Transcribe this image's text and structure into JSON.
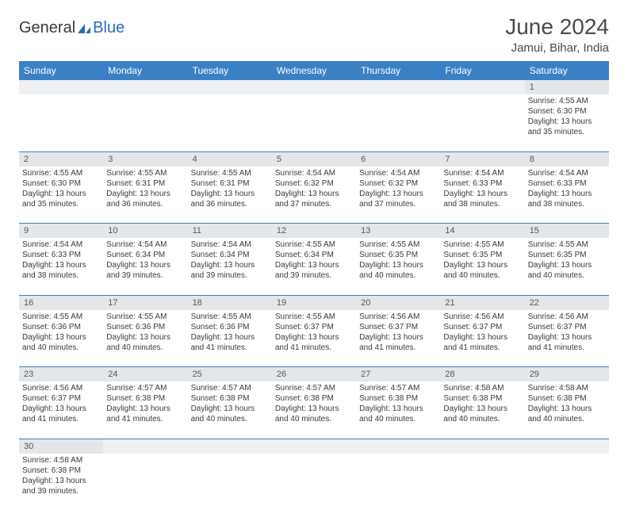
{
  "logo": {
    "text1": "General",
    "text2": "Blue"
  },
  "header": {
    "month_title": "June 2024",
    "location": "Jamui, Bihar, India"
  },
  "colors": {
    "header_bg": "#3a80c5",
    "header_text": "#ffffff",
    "daynum_bg": "#e4e7ea",
    "row_border": "#3a80c5",
    "text": "#3a3a3a",
    "logo_blue": "#2a6db5"
  },
  "weekdays": [
    "Sunday",
    "Monday",
    "Tuesday",
    "Wednesday",
    "Thursday",
    "Friday",
    "Saturday"
  ],
  "weeks": [
    {
      "nums": [
        "",
        "",
        "",
        "",
        "",
        "",
        "1"
      ],
      "cells": [
        null,
        null,
        null,
        null,
        null,
        null,
        {
          "sunrise": "Sunrise: 4:55 AM",
          "sunset": "Sunset: 6:30 PM",
          "d1": "Daylight: 13 hours",
          "d2": "and 35 minutes."
        }
      ]
    },
    {
      "nums": [
        "2",
        "3",
        "4",
        "5",
        "6",
        "7",
        "8"
      ],
      "cells": [
        {
          "sunrise": "Sunrise: 4:55 AM",
          "sunset": "Sunset: 6:30 PM",
          "d1": "Daylight: 13 hours",
          "d2": "and 35 minutes."
        },
        {
          "sunrise": "Sunrise: 4:55 AM",
          "sunset": "Sunset: 6:31 PM",
          "d1": "Daylight: 13 hours",
          "d2": "and 36 minutes."
        },
        {
          "sunrise": "Sunrise: 4:55 AM",
          "sunset": "Sunset: 6:31 PM",
          "d1": "Daylight: 13 hours",
          "d2": "and 36 minutes."
        },
        {
          "sunrise": "Sunrise: 4:54 AM",
          "sunset": "Sunset: 6:32 PM",
          "d1": "Daylight: 13 hours",
          "d2": "and 37 minutes."
        },
        {
          "sunrise": "Sunrise: 4:54 AM",
          "sunset": "Sunset: 6:32 PM",
          "d1": "Daylight: 13 hours",
          "d2": "and 37 minutes."
        },
        {
          "sunrise": "Sunrise: 4:54 AM",
          "sunset": "Sunset: 6:33 PM",
          "d1": "Daylight: 13 hours",
          "d2": "and 38 minutes."
        },
        {
          "sunrise": "Sunrise: 4:54 AM",
          "sunset": "Sunset: 6:33 PM",
          "d1": "Daylight: 13 hours",
          "d2": "and 38 minutes."
        }
      ]
    },
    {
      "nums": [
        "9",
        "10",
        "11",
        "12",
        "13",
        "14",
        "15"
      ],
      "cells": [
        {
          "sunrise": "Sunrise: 4:54 AM",
          "sunset": "Sunset: 6:33 PM",
          "d1": "Daylight: 13 hours",
          "d2": "and 38 minutes."
        },
        {
          "sunrise": "Sunrise: 4:54 AM",
          "sunset": "Sunset: 6:34 PM",
          "d1": "Daylight: 13 hours",
          "d2": "and 39 minutes."
        },
        {
          "sunrise": "Sunrise: 4:54 AM",
          "sunset": "Sunset: 6:34 PM",
          "d1": "Daylight: 13 hours",
          "d2": "and 39 minutes."
        },
        {
          "sunrise": "Sunrise: 4:55 AM",
          "sunset": "Sunset: 6:34 PM",
          "d1": "Daylight: 13 hours",
          "d2": "and 39 minutes."
        },
        {
          "sunrise": "Sunrise: 4:55 AM",
          "sunset": "Sunset: 6:35 PM",
          "d1": "Daylight: 13 hours",
          "d2": "and 40 minutes."
        },
        {
          "sunrise": "Sunrise: 4:55 AM",
          "sunset": "Sunset: 6:35 PM",
          "d1": "Daylight: 13 hours",
          "d2": "and 40 minutes."
        },
        {
          "sunrise": "Sunrise: 4:55 AM",
          "sunset": "Sunset: 6:35 PM",
          "d1": "Daylight: 13 hours",
          "d2": "and 40 minutes."
        }
      ]
    },
    {
      "nums": [
        "16",
        "17",
        "18",
        "19",
        "20",
        "21",
        "22"
      ],
      "cells": [
        {
          "sunrise": "Sunrise: 4:55 AM",
          "sunset": "Sunset: 6:36 PM",
          "d1": "Daylight: 13 hours",
          "d2": "and 40 minutes."
        },
        {
          "sunrise": "Sunrise: 4:55 AM",
          "sunset": "Sunset: 6:36 PM",
          "d1": "Daylight: 13 hours",
          "d2": "and 40 minutes."
        },
        {
          "sunrise": "Sunrise: 4:55 AM",
          "sunset": "Sunset: 6:36 PM",
          "d1": "Daylight: 13 hours",
          "d2": "and 41 minutes."
        },
        {
          "sunrise": "Sunrise: 4:55 AM",
          "sunset": "Sunset: 6:37 PM",
          "d1": "Daylight: 13 hours",
          "d2": "and 41 minutes."
        },
        {
          "sunrise": "Sunrise: 4:56 AM",
          "sunset": "Sunset: 6:37 PM",
          "d1": "Daylight: 13 hours",
          "d2": "and 41 minutes."
        },
        {
          "sunrise": "Sunrise: 4:56 AM",
          "sunset": "Sunset: 6:37 PM",
          "d1": "Daylight: 13 hours",
          "d2": "and 41 minutes."
        },
        {
          "sunrise": "Sunrise: 4:56 AM",
          "sunset": "Sunset: 6:37 PM",
          "d1": "Daylight: 13 hours",
          "d2": "and 41 minutes."
        }
      ]
    },
    {
      "nums": [
        "23",
        "24",
        "25",
        "26",
        "27",
        "28",
        "29"
      ],
      "cells": [
        {
          "sunrise": "Sunrise: 4:56 AM",
          "sunset": "Sunset: 6:37 PM",
          "d1": "Daylight: 13 hours",
          "d2": "and 41 minutes."
        },
        {
          "sunrise": "Sunrise: 4:57 AM",
          "sunset": "Sunset: 6:38 PM",
          "d1": "Daylight: 13 hours",
          "d2": "and 41 minutes."
        },
        {
          "sunrise": "Sunrise: 4:57 AM",
          "sunset": "Sunset: 6:38 PM",
          "d1": "Daylight: 13 hours",
          "d2": "and 40 minutes."
        },
        {
          "sunrise": "Sunrise: 4:57 AM",
          "sunset": "Sunset: 6:38 PM",
          "d1": "Daylight: 13 hours",
          "d2": "and 40 minutes."
        },
        {
          "sunrise": "Sunrise: 4:57 AM",
          "sunset": "Sunset: 6:38 PM",
          "d1": "Daylight: 13 hours",
          "d2": "and 40 minutes."
        },
        {
          "sunrise": "Sunrise: 4:58 AM",
          "sunset": "Sunset: 6:38 PM",
          "d1": "Daylight: 13 hours",
          "d2": "and 40 minutes."
        },
        {
          "sunrise": "Sunrise: 4:58 AM",
          "sunset": "Sunset: 6:38 PM",
          "d1": "Daylight: 13 hours",
          "d2": "and 40 minutes."
        }
      ]
    },
    {
      "nums": [
        "30",
        "",
        "",
        "",
        "",
        "",
        ""
      ],
      "cells": [
        {
          "sunrise": "Sunrise: 4:58 AM",
          "sunset": "Sunset: 6:38 PM",
          "d1": "Daylight: 13 hours",
          "d2": "and 39 minutes."
        },
        null,
        null,
        null,
        null,
        null,
        null
      ]
    }
  ]
}
